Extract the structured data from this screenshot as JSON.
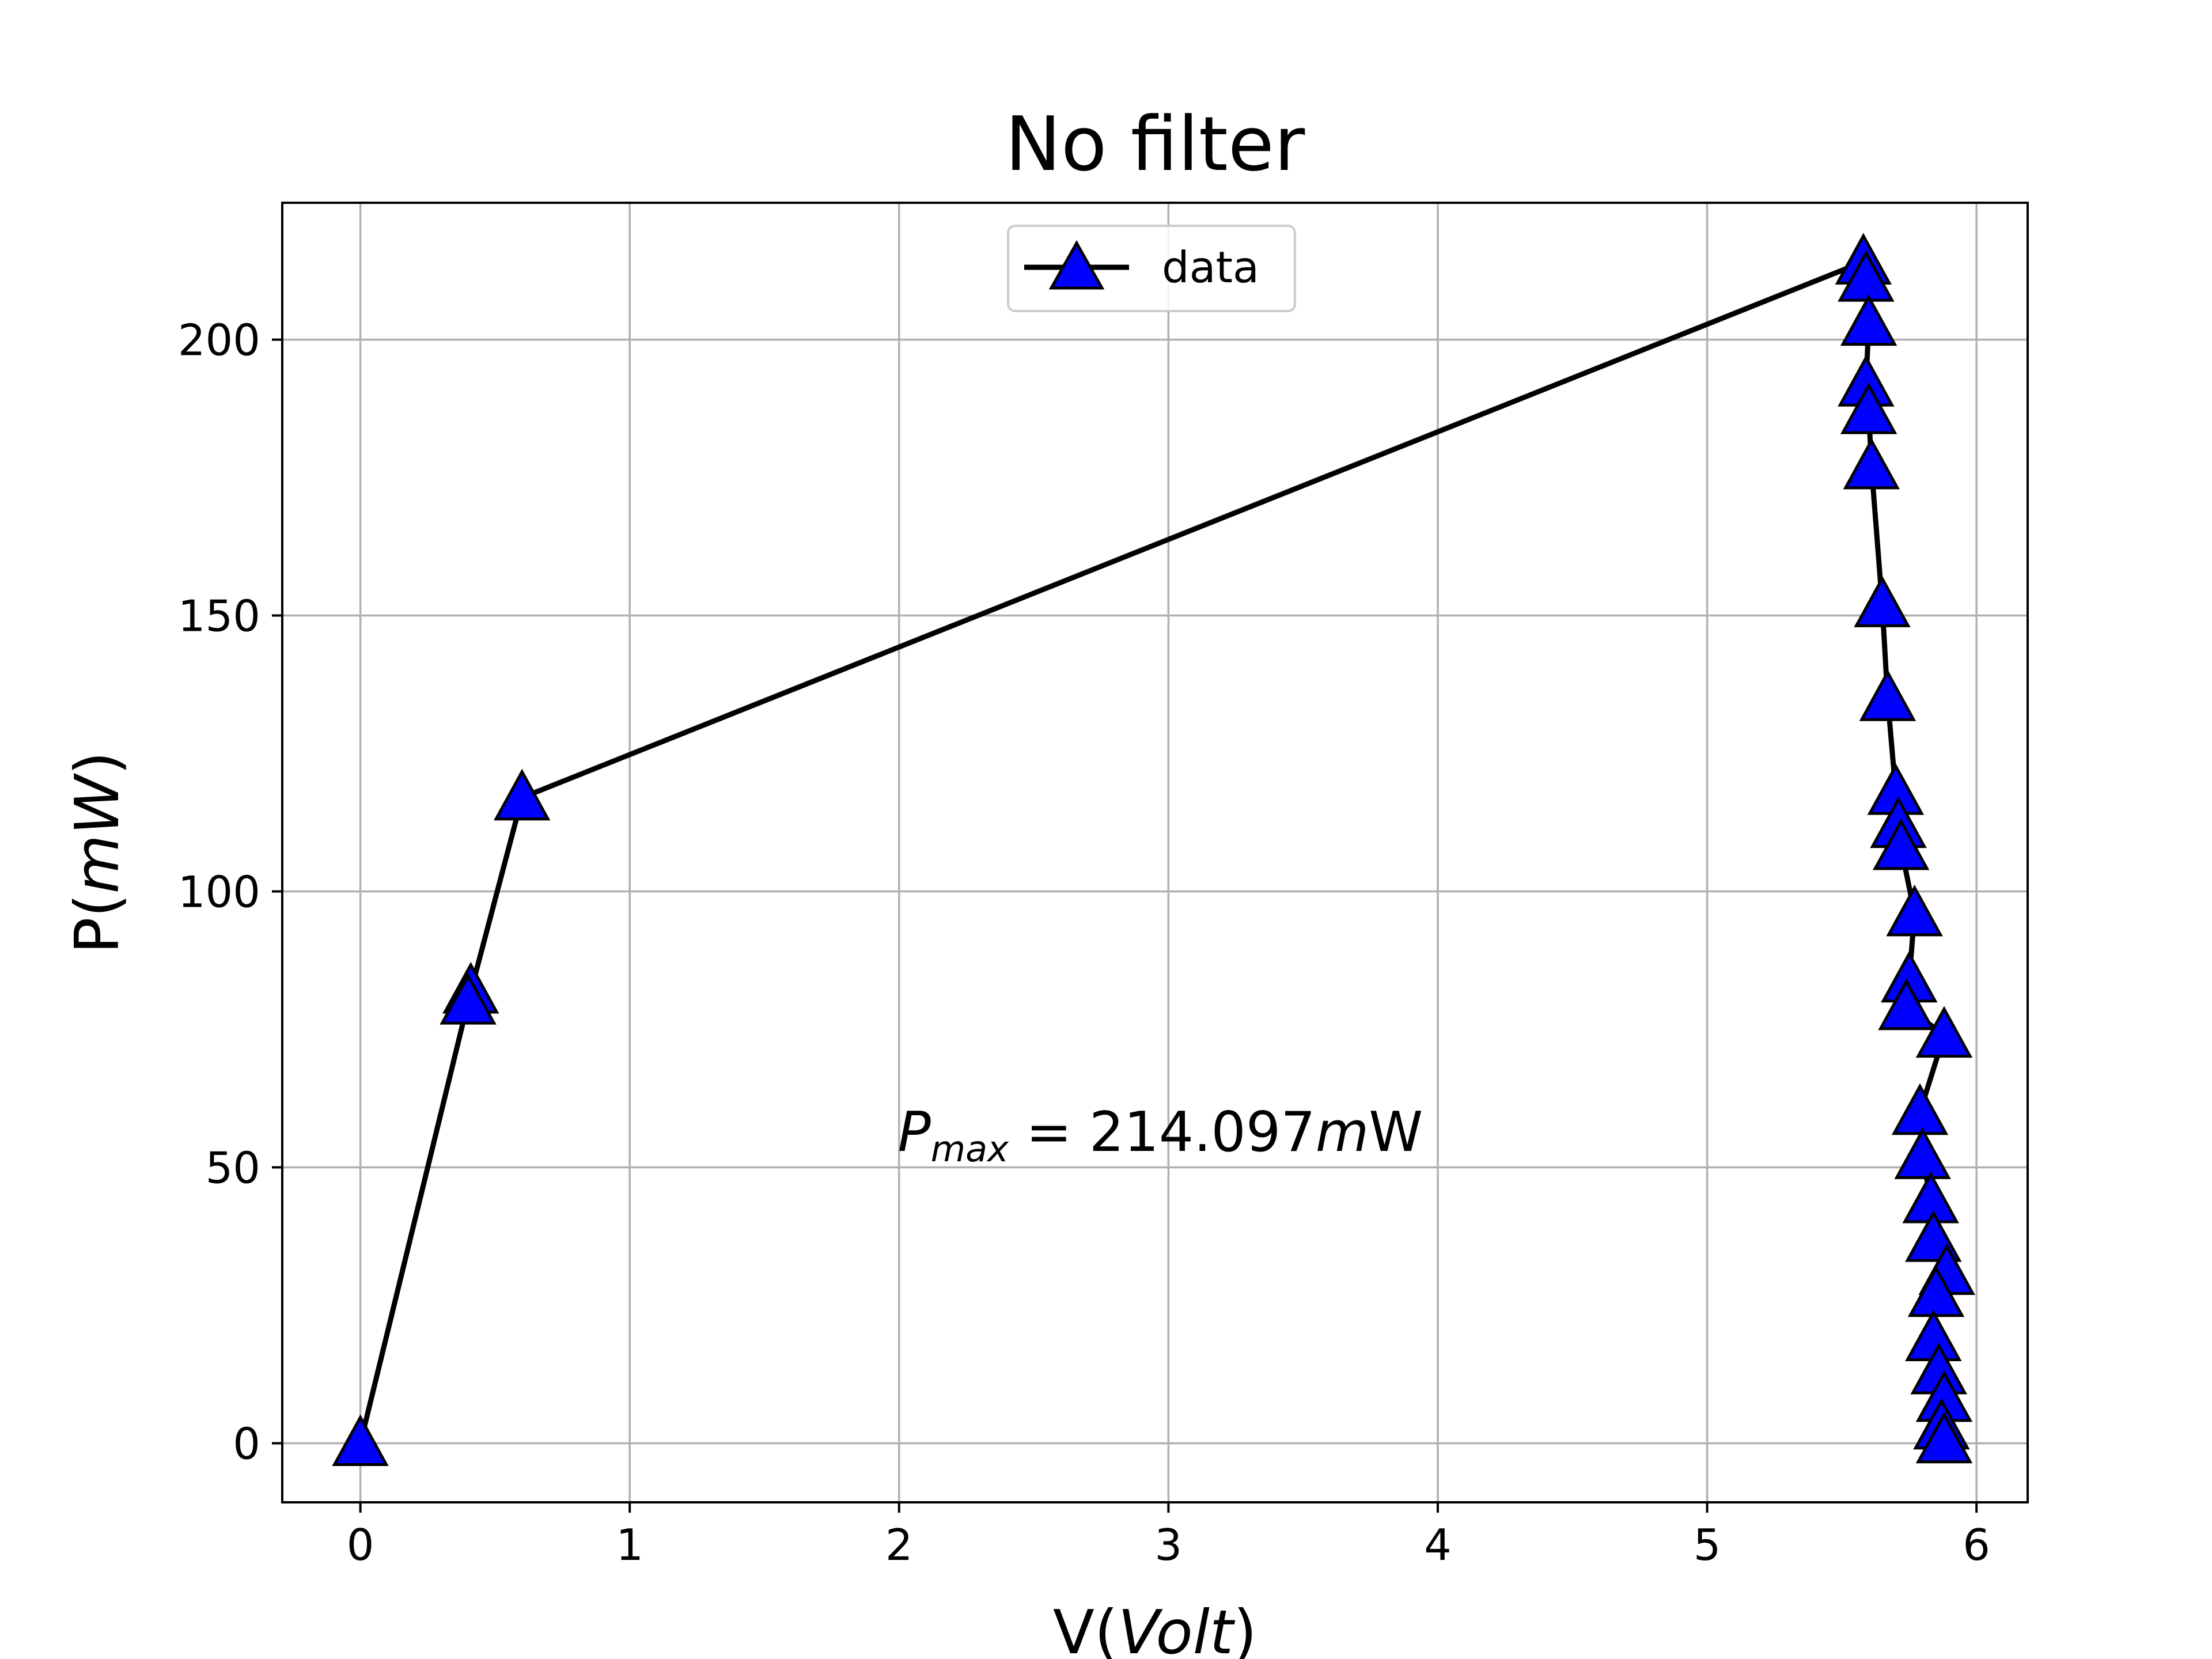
{
  "chart_data": {
    "type": "line",
    "title": "No filter",
    "xlabel": {
      "prefix": "V(",
      "italic": "Volt",
      "suffix": ")"
    },
    "ylabel": {
      "prefix": "P(",
      "italic": "mW",
      "suffix": ")"
    },
    "xlim": [
      -0.29,
      6.19
    ],
    "ylim": [
      -10.7,
      224.8
    ],
    "xticks": [
      0,
      1,
      2,
      3,
      4,
      5,
      6
    ],
    "yticks": [
      0,
      50,
      100,
      150,
      200
    ],
    "grid": true,
    "legend": {
      "position": "upper center",
      "entries": [
        "data"
      ]
    },
    "series": [
      {
        "name": "data",
        "line_color": "#000000",
        "marker": "triangle-up",
        "marker_color": "#0000ff",
        "x": [
          0.0,
          0.41,
          0.4,
          0.6,
          5.58,
          5.59,
          5.6,
          5.59,
          5.6,
          5.61,
          5.65,
          5.67,
          5.7,
          5.71,
          5.72,
          5.77,
          5.75,
          5.74,
          5.88,
          5.79,
          5.8,
          5.83,
          5.84,
          5.89,
          5.85,
          5.84,
          5.86,
          5.88,
          5.87,
          5.88
        ],
        "y": [
          0.0,
          82.0,
          80.0,
          117.0,
          214.1,
          211.0,
          203.0,
          192.0,
          187.0,
          177.0,
          152.0,
          135.0,
          118.0,
          112.0,
          108.0,
          96.0,
          84.0,
          79.0,
          74.0,
          60.0,
          52.0,
          44.0,
          37.0,
          31.0,
          27.0,
          19.0,
          13.0,
          8.0,
          3.0,
          0.5
        ]
      }
    ],
    "annotation": {
      "base": "P",
      "subscript": "max",
      "text": " = 214.097",
      "unit_italic": "m",
      "unit": "W",
      "x": 2.97,
      "y": 53
    }
  }
}
